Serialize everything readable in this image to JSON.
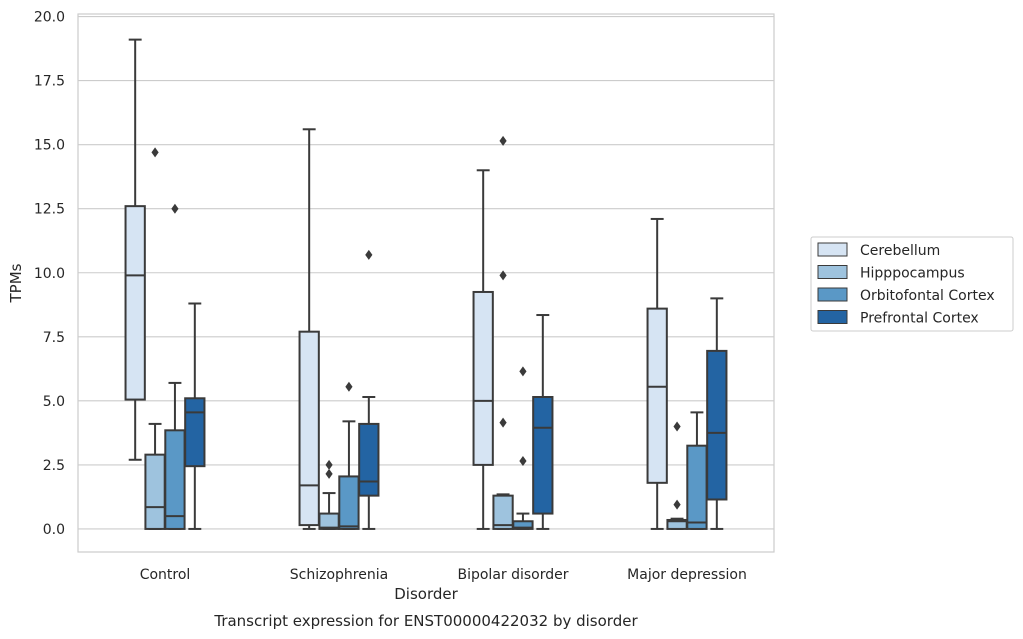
{
  "chart_data": {
    "type": "boxplot",
    "title": "Transcript expression for ENST00000422032 by disorder",
    "xlabel": "Disorder",
    "ylabel": "TPMs",
    "ylim": [
      -0.9,
      20.1
    ],
    "yticks": [
      "0.0",
      "2.5",
      "5.0",
      "7.5",
      "10.0",
      "12.5",
      "15.0",
      "17.5",
      "20.0"
    ],
    "grid": "horizontal",
    "legend_position": "right",
    "categories": [
      "Control",
      "Schizophrenia",
      "Bipolar disorder",
      "Major depression"
    ],
    "series": [
      {
        "name": "Cerebellum",
        "color": "#d6e4f3",
        "boxes": [
          {
            "whislo": 2.7,
            "q1": 5.05,
            "med": 9.9,
            "q3": 12.6,
            "whishi": 19.1,
            "fliers": []
          },
          {
            "whislo": 0.0,
            "q1": 0.15,
            "med": 1.7,
            "q3": 7.7,
            "whishi": 15.6,
            "fliers": []
          },
          {
            "whislo": 0.0,
            "q1": 2.5,
            "med": 5.0,
            "q3": 9.25,
            "whishi": 14.0,
            "fliers": []
          },
          {
            "whislo": 0.0,
            "q1": 1.8,
            "med": 5.55,
            "q3": 8.6,
            "whishi": 12.1,
            "fliers": []
          }
        ]
      },
      {
        "name": "Hipppocampus",
        "color": "#9ec3de",
        "boxes": [
          {
            "whislo": 0.0,
            "q1": 0.0,
            "med": 0.85,
            "q3": 2.9,
            "whishi": 4.1,
            "fliers": [
              14.7
            ]
          },
          {
            "whislo": 0.0,
            "q1": 0.0,
            "med": 0.05,
            "q3": 0.6,
            "whishi": 1.4,
            "fliers": [
              2.15,
              2.5
            ]
          },
          {
            "whislo": 0.0,
            "q1": 0.0,
            "med": 0.15,
            "q3": 1.3,
            "whishi": 1.35,
            "fliers": [
              4.15,
              9.9,
              15.15
            ]
          },
          {
            "whislo": 0.0,
            "q1": 0.0,
            "med": 0.3,
            "q3": 0.35,
            "whishi": 0.4,
            "fliers": [
              0.95,
              4.0
            ]
          }
        ]
      },
      {
        "name": "Orbitofontal Cortex",
        "color": "#5a98c6",
        "boxes": [
          {
            "whislo": 0.0,
            "q1": 0.0,
            "med": 0.5,
            "q3": 3.85,
            "whishi": 5.7,
            "fliers": [
              12.5
            ]
          },
          {
            "whislo": 0.0,
            "q1": 0.0,
            "med": 0.1,
            "q3": 2.05,
            "whishi": 4.2,
            "fliers": [
              5.55
            ]
          },
          {
            "whislo": 0.0,
            "q1": 0.0,
            "med": 0.05,
            "q3": 0.3,
            "whishi": 0.6,
            "fliers": [
              2.65,
              6.15
            ]
          },
          {
            "whislo": 0.0,
            "q1": 0.0,
            "med": 0.25,
            "q3": 3.25,
            "whishi": 4.55,
            "fliers": []
          }
        ]
      },
      {
        "name": "Prefrontal Cortex",
        "color": "#2364a3",
        "boxes": [
          {
            "whislo": 0.0,
            "q1": 2.45,
            "med": 4.55,
            "q3": 5.1,
            "whishi": 8.8,
            "fliers": []
          },
          {
            "whislo": 0.0,
            "q1": 1.3,
            "med": 1.85,
            "q3": 4.1,
            "whishi": 5.15,
            "fliers": [
              10.7
            ]
          },
          {
            "whislo": 0.0,
            "q1": 0.6,
            "med": 3.95,
            "q3": 5.15,
            "whishi": 8.35,
            "fliers": []
          },
          {
            "whislo": 0.0,
            "q1": 1.15,
            "med": 3.75,
            "q3": 6.95,
            "whishi": 9.0,
            "fliers": []
          }
        ]
      }
    ]
  }
}
